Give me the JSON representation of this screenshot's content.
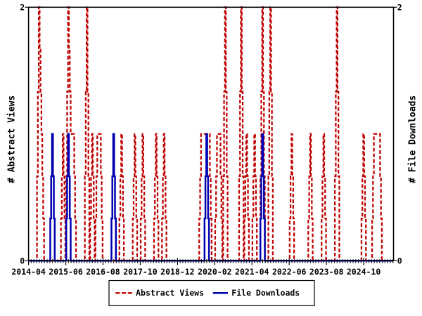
{
  "chart_data": {
    "type": "line",
    "title": "",
    "x_start": "2014-04",
    "x_end": "2025-09",
    "x_unit": "month",
    "n_points": 138,
    "xtick_interval_months": 14,
    "xtick_labels": [
      "2014-04",
      "2015-06",
      "2016-08",
      "2017-10",
      "2018-12",
      "2020-02",
      "2021-04",
      "2022-06",
      "2023-08",
      "2024-10"
    ],
    "ylim": [
      0,
      2
    ],
    "ytick_labels": [
      "0",
      "2"
    ],
    "ylabel_left": "# Abstract Views",
    "ylabel_right": "# File Downloads",
    "grid": "off",
    "legend_position": "bottom-center",
    "series": [
      {
        "name": "Abstract Views",
        "axis": "left",
        "style": "dashed",
        "color": "#c00000",
        "values": [
          0,
          0,
          0,
          0,
          2,
          1,
          0,
          0,
          0,
          0,
          0,
          0,
          0,
          1,
          0,
          2,
          1,
          1,
          0,
          0,
          0,
          0,
          2,
          0,
          1,
          0,
          1,
          1,
          0,
          0,
          0,
          0,
          0,
          0,
          0,
          1,
          0,
          0,
          0,
          0,
          1,
          0,
          0,
          1,
          0,
          0,
          0,
          0,
          1,
          0,
          0,
          1,
          0,
          0,
          0,
          0,
          0,
          0,
          0,
          0,
          0,
          0,
          0,
          0,
          0,
          1,
          1,
          1,
          1,
          0,
          0,
          1,
          1,
          0,
          2,
          0,
          0,
          0,
          0,
          0,
          2,
          0,
          1,
          0,
          0,
          1,
          0,
          0,
          2,
          0,
          0,
          2,
          0,
          0,
          0,
          0,
          0,
          0,
          0,
          1,
          0,
          0,
          0,
          0,
          0,
          0,
          1,
          0,
          0,
          0,
          0,
          1,
          0,
          0,
          0,
          0,
          2,
          0,
          0,
          0,
          0,
          0,
          0,
          0,
          0,
          0,
          1,
          0,
          0,
          0,
          1,
          1,
          1,
          0,
          0,
          0,
          0,
          0
        ]
      },
      {
        "name": "File Downloads",
        "axis": "right",
        "style": "solid",
        "color": "#0000b0",
        "values": [
          0,
          0,
          0,
          0,
          0,
          0,
          0,
          0,
          0,
          1,
          0,
          0,
          0,
          0,
          0,
          1,
          0,
          0,
          0,
          0,
          0,
          0,
          0,
          0,
          0,
          0,
          0,
          0,
          0,
          0,
          0,
          0,
          1,
          0,
          0,
          0,
          0,
          0,
          0,
          0,
          0,
          0,
          0,
          0,
          0,
          0,
          0,
          0,
          0,
          0,
          0,
          0,
          0,
          0,
          0,
          0,
          0,
          0,
          0,
          0,
          0,
          0,
          0,
          0,
          0,
          0,
          0,
          1,
          0,
          0,
          0,
          0,
          0,
          0,
          0,
          0,
          0,
          0,
          0,
          0,
          0,
          0,
          0,
          0,
          0,
          0,
          0,
          0,
          1,
          0,
          0,
          0,
          0,
          0,
          0,
          0,
          0,
          0,
          0,
          0,
          0,
          0,
          0,
          0,
          0,
          0,
          0,
          0,
          0,
          0,
          0,
          0,
          0,
          0,
          0,
          0,
          0,
          0,
          0,
          0,
          0,
          0,
          0,
          0,
          0,
          0,
          0,
          0,
          0,
          0,
          0,
          0,
          0,
          0,
          0,
          0,
          0,
          0
        ]
      }
    ],
    "legend": {
      "items": [
        {
          "label": "Abstract Views",
          "color": "#c00000",
          "style": "dashed"
        },
        {
          "label": "File Downloads",
          "color": "#0000b0",
          "style": "solid"
        }
      ]
    }
  }
}
